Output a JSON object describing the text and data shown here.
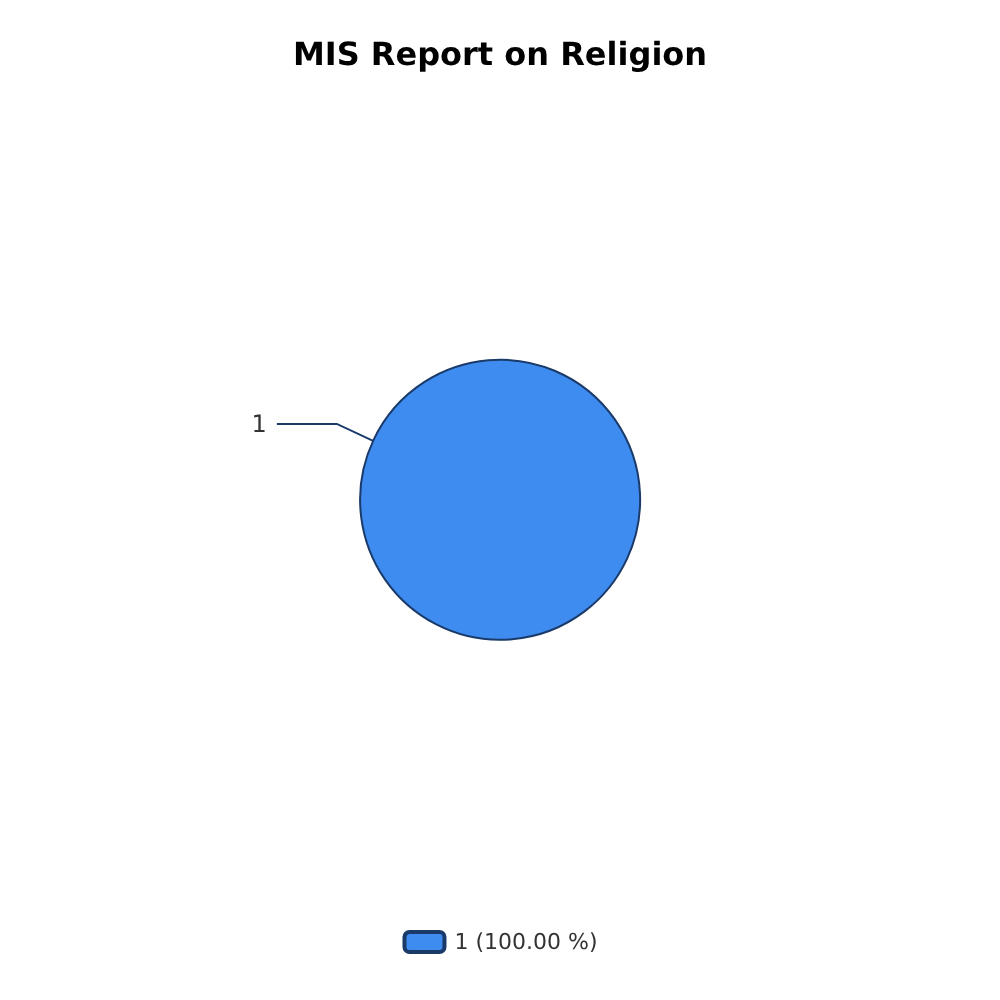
{
  "chart_data": {
    "type": "pie",
    "title": "MIS Report on Religion",
    "categories": [
      "1 (100.00 %)"
    ],
    "values": [
      1
    ],
    "data_labels": true,
    "colors": [
      "#3f8cf0"
    ],
    "legend": "bottom"
  }
}
